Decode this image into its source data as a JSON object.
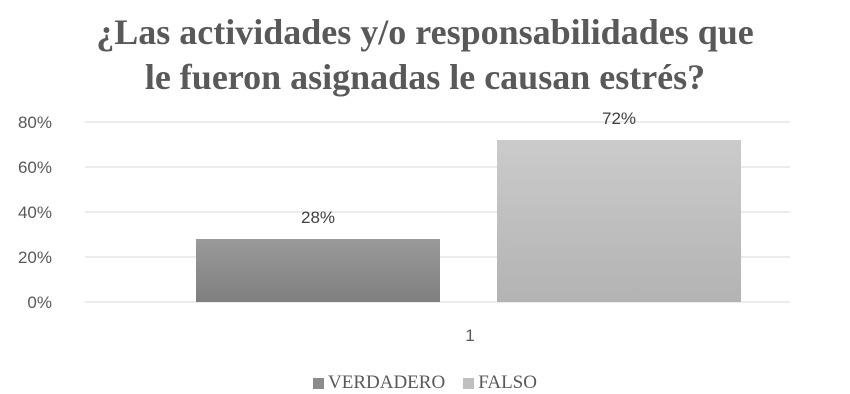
{
  "chart_data": {
    "type": "bar",
    "title_lines": [
      "¿Las actividades y/o responsabilidades que",
      "le fueron asignadas le causan estrés?"
    ],
    "categories": [
      "1"
    ],
    "series": [
      {
        "name": "VERDADERO",
        "values": [
          0.28
        ],
        "label": "28%",
        "color": "#8c8c8c"
      },
      {
        "name": "FALSO",
        "values": [
          0.72
        ],
        "label": "72%",
        "color": "#bfbfbf"
      }
    ],
    "y_ticks": [
      "0%",
      "20%",
      "40%",
      "60%",
      "80%"
    ],
    "ylim": [
      0,
      0.8
    ],
    "grid": true,
    "legend_position": "bottom"
  }
}
